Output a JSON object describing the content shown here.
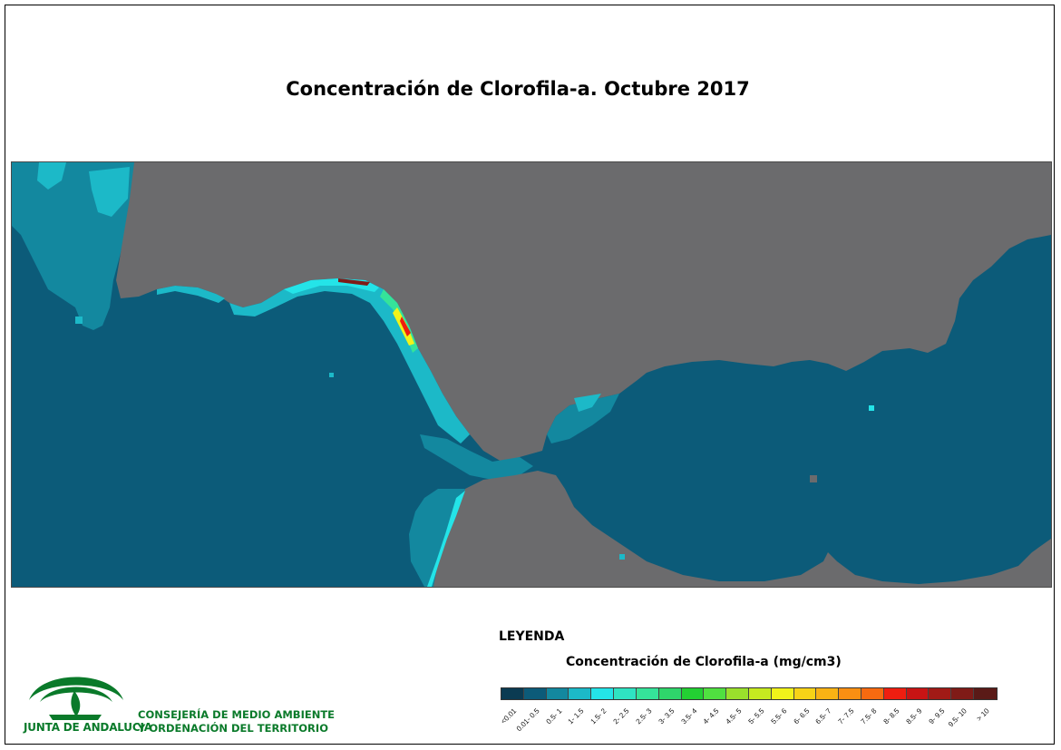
{
  "title": "Concentración de Clorofila-a. Octubre 2017",
  "legend": {
    "heading": "LEYENDA",
    "subtitle": "Concentración de Clorofila-a (mg/cm3)",
    "classes": [
      {
        "label": "<0.01",
        "color": "#0b3b52"
      },
      {
        "label": "0.01- 0.5",
        "color": "#0c5b79"
      },
      {
        "label": "0.5- 1",
        "color": "#13889f"
      },
      {
        "label": "1- 1.5",
        "color": "#1cb9c8"
      },
      {
        "label": "1.5- 2",
        "color": "#24e4e8"
      },
      {
        "label": "2- 2.5",
        "color": "#2fe3c2"
      },
      {
        "label": "2.5- 3",
        "color": "#35e39a"
      },
      {
        "label": "3- 3.5",
        "color": "#2fd56b"
      },
      {
        "label": "3.5- 4",
        "color": "#23d033"
      },
      {
        "label": "4- 4.5",
        "color": "#50e040"
      },
      {
        "label": "4.5- 5",
        "color": "#9ae02c"
      },
      {
        "label": "5- 5.5",
        "color": "#c6ea20"
      },
      {
        "label": "5.5- 6",
        "color": "#f1f31a"
      },
      {
        "label": "6- 6.5",
        "color": "#f7d317"
      },
      {
        "label": "6.5- 7",
        "color": "#f9b214"
      },
      {
        "label": "7- 7.5",
        "color": "#fa8f12"
      },
      {
        "label": "7.5- 8",
        "color": "#f76a10"
      },
      {
        "label": "8- 8.5",
        "color": "#ee1e10"
      },
      {
        "label": "8.5- 9",
        "color": "#c81414"
      },
      {
        "label": "9- 9.5",
        "color": "#a11a16"
      },
      {
        "label": "9.5- 10",
        "color": "#7f1b17"
      },
      {
        "label": "> 10",
        "color": "#5a1a17"
      }
    ]
  },
  "map": {
    "land_color": "#6b6b6d",
    "sea_color": "#0c5b79"
  },
  "logo": {
    "name": "JUNTA DE ANDALUCIA",
    "department_line1": "CONSEJERÍA DE MEDIO AMBIENTE",
    "department_line2": "Y ORDENACIÓN DEL TERRITORIO",
    "color": "#0a7a2a"
  }
}
